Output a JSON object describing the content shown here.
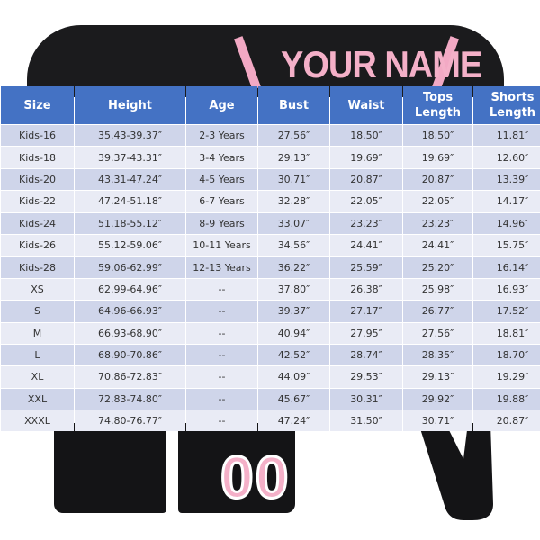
{
  "image": {
    "print_text": "YOUR NAME",
    "shorts_number": "00",
    "colors": {
      "header": "#4472c4",
      "row_dark": "#cfd5ea",
      "row_light": "#e9ebf5",
      "garment": "#1b1b1d",
      "print": "#f4b0c8"
    }
  },
  "table": {
    "headers": [
      "Size",
      "Height",
      "Age",
      "Bust",
      "Waist",
      "Tops Length",
      "Shorts Length"
    ],
    "rows": [
      [
        "Kids-16",
        "35.43-39.37″",
        "2-3 Years",
        "27.56″",
        "18.50″",
        "18.50″",
        "11.81″"
      ],
      [
        "Kids-18",
        "39.37-43.31″",
        "3-4 Years",
        "29.13″",
        "19.69″",
        "19.69″",
        "12.60″"
      ],
      [
        "Kids-20",
        "43.31-47.24″",
        "4-5 Years",
        "30.71″",
        "20.87″",
        "20.87″",
        "13.39″"
      ],
      [
        "Kids-22",
        "47.24-51.18″",
        "6-7 Years",
        "32.28″",
        "22.05″",
        "22.05″",
        "14.17″"
      ],
      [
        "Kids-24",
        "51.18-55.12″",
        "8-9 Years",
        "33.07″",
        "23.23″",
        "23.23″",
        "14.96″"
      ],
      [
        "Kids-26",
        "55.12-59.06″",
        "10-11 Years",
        "34.56″",
        "24.41″",
        "24.41″",
        "15.75″"
      ],
      [
        "Kids-28",
        "59.06-62.99″",
        "12-13 Years",
        "36.22″",
        "25.59″",
        "25.20″",
        "16.14″"
      ],
      [
        "XS",
        "62.99-64.96″",
        "--",
        "37.80″",
        "26.38″",
        "25.98″",
        "16.93″"
      ],
      [
        "S",
        "64.96-66.93″",
        "--",
        "39.37″",
        "27.17″",
        "26.77″",
        "17.52″"
      ],
      [
        "M",
        "66.93-68.90″",
        "--",
        "40.94″",
        "27.95″",
        "27.56″",
        "18.81″"
      ],
      [
        "L",
        "68.90-70.86″",
        "--",
        "42.52″",
        "28.74″",
        "28.35″",
        "18.70″"
      ],
      [
        "XL",
        "70.86-72.83″",
        "--",
        "44.09″",
        "29.53″",
        "29.13″",
        "19.29″"
      ],
      [
        "XXL",
        "72.83-74.80″",
        "--",
        "45.67″",
        "30.31″",
        "29.92″",
        "19.88″"
      ],
      [
        "XXXL",
        "74.80-76.77″",
        "--",
        "47.24″",
        "31.50″",
        "30.71″",
        "20.87″"
      ]
    ]
  }
}
